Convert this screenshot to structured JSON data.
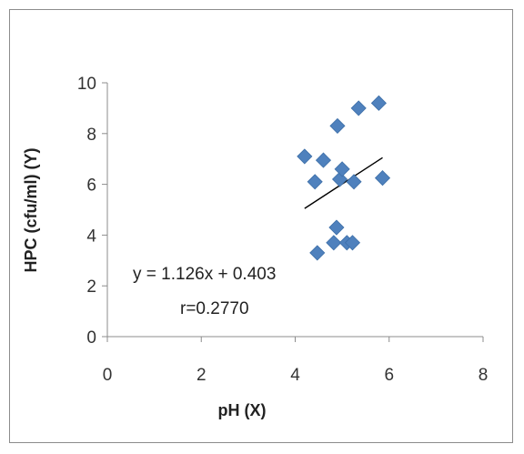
{
  "chart_data": {
    "type": "scatter",
    "xlabel": "pH (X)",
    "ylabel": "HPC (cfu/ml) (Y)",
    "xlim": [
      0,
      8
    ],
    "ylim": [
      0,
      10
    ],
    "x_ticks": [
      0,
      2,
      4,
      6,
      8
    ],
    "y_ticks": [
      0,
      2,
      4,
      6,
      8,
      10
    ],
    "x_tick_labels": [
      "0",
      "2",
      "4",
      "6",
      "8"
    ],
    "y_tick_labels": [
      "0",
      "2",
      "4",
      "6",
      "8",
      "10"
    ],
    "grid": false,
    "marker": "diamond",
    "marker_color": "#4f81bd",
    "points": [
      {
        "x": 4.2,
        "y": 7.1
      },
      {
        "x": 4.42,
        "y": 6.1
      },
      {
        "x": 4.47,
        "y": 3.3
      },
      {
        "x": 4.6,
        "y": 6.95
      },
      {
        "x": 4.82,
        "y": 3.7
      },
      {
        "x": 4.88,
        "y": 4.3
      },
      {
        "x": 4.9,
        "y": 8.3
      },
      {
        "x": 4.95,
        "y": 6.2
      },
      {
        "x": 5.0,
        "y": 6.6
      },
      {
        "x": 5.1,
        "y": 3.7
      },
      {
        "x": 5.22,
        "y": 3.7
      },
      {
        "x": 5.25,
        "y": 6.1
      },
      {
        "x": 5.35,
        "y": 9.0
      },
      {
        "x": 5.78,
        "y": 9.2
      },
      {
        "x": 5.86,
        "y": 6.25
      }
    ],
    "trendline": {
      "x_start": 4.2,
      "x_end": 5.86,
      "y_start": 5.05,
      "y_end": 7.05,
      "color": "#000000"
    },
    "annotations": {
      "equation": "y = 1.126x + 0.403",
      "r_value": "r=0.2770"
    }
  }
}
